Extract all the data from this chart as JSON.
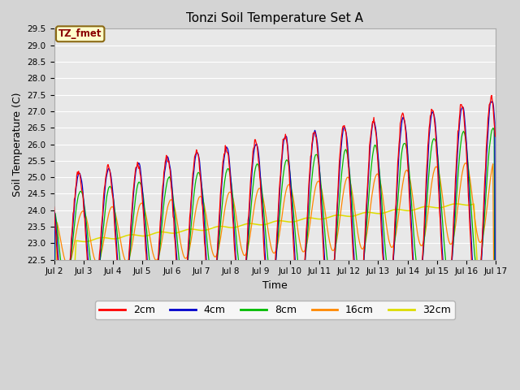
{
  "title": "Tonzi Soil Temperature Set A",
  "xlabel": "Time",
  "ylabel": "Soil Temperature (C)",
  "ylim": [
    22.5,
    29.5
  ],
  "annotation_text": "TZ_fmet",
  "annotation_color": "#8B0000",
  "annotation_bg": "#FFFFCC",
  "annotation_edge": "#8B6914",
  "fig_bg": "#D4D4D4",
  "plot_bg": "#E8E8E8",
  "grid_color": "#FFFFFF",
  "series_colors": {
    "2cm": "#FF0000",
    "4cm": "#0000CC",
    "8cm": "#00BB00",
    "16cm": "#FF8800",
    "32cm": "#DDDD00"
  },
  "xtick_labels": [
    "Jul 2",
    "Jul 3",
    "Jul 4",
    "Jul 5",
    "Jul 6",
    "Jul 7",
    "Jul 8",
    "Jul 9",
    "Jul 10",
    "Jul 11",
    "Jul 12",
    "Jul 13",
    "Jul 14",
    "Jul 15",
    "Jul 16",
    "Jul 17"
  ],
  "ytick_values": [
    22.5,
    23.0,
    23.5,
    24.0,
    24.5,
    25.0,
    25.5,
    26.0,
    26.5,
    27.0,
    27.5,
    28.0,
    28.5,
    29.0,
    29.5
  ],
  "n_days": 15,
  "n_per_day": 48,
  "figsize": [
    6.4,
    4.8
  ],
  "dpi": 100
}
